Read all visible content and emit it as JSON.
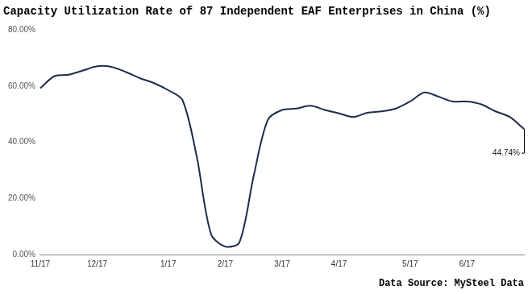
{
  "chart_data": {
    "type": "line",
    "title": "Capacity Utilization Rate of 87 Independent EAF Enterprises in China (%)",
    "source": "Data Source: MySteel Data",
    "annotation": "44.74%",
    "categories": [
      "11/17",
      null,
      null,
      null,
      "12/17",
      null,
      null,
      null,
      null,
      "1/17",
      null,
      null,
      null,
      "2/17",
      null,
      null,
      null,
      "3/17",
      null,
      null,
      null,
      "4/17",
      null,
      null,
      null,
      null,
      "5/17",
      null,
      null,
      null,
      "6/17",
      null,
      null,
      null,
      null
    ],
    "values": [
      59.2,
      63.5,
      64.0,
      65.5,
      67.0,
      66.8,
      65.0,
      62.8,
      61.0,
      58.5,
      55.0,
      35.0,
      7.5,
      3.0,
      4.5,
      28.0,
      48.0,
      51.5,
      52.0,
      53.0,
      51.5,
      50.3,
      49.0,
      50.5,
      51.0,
      52.0,
      54.5,
      57.7,
      56.2,
      54.5,
      54.5,
      53.5,
      51.0,
      49.0,
      44.74
    ],
    "color": "#1f2d4a",
    "ylim": [
      0,
      80
    ],
    "yticks": [
      {
        "value": 0,
        "label": "0.00%"
      },
      {
        "value": 20,
        "label": "20.00%"
      },
      {
        "value": 40,
        "label": "40.00%"
      },
      {
        "value": 60,
        "label": "60.00%"
      },
      {
        "value": 80,
        "label": "80.00%"
      }
    ],
    "grid": false
  }
}
